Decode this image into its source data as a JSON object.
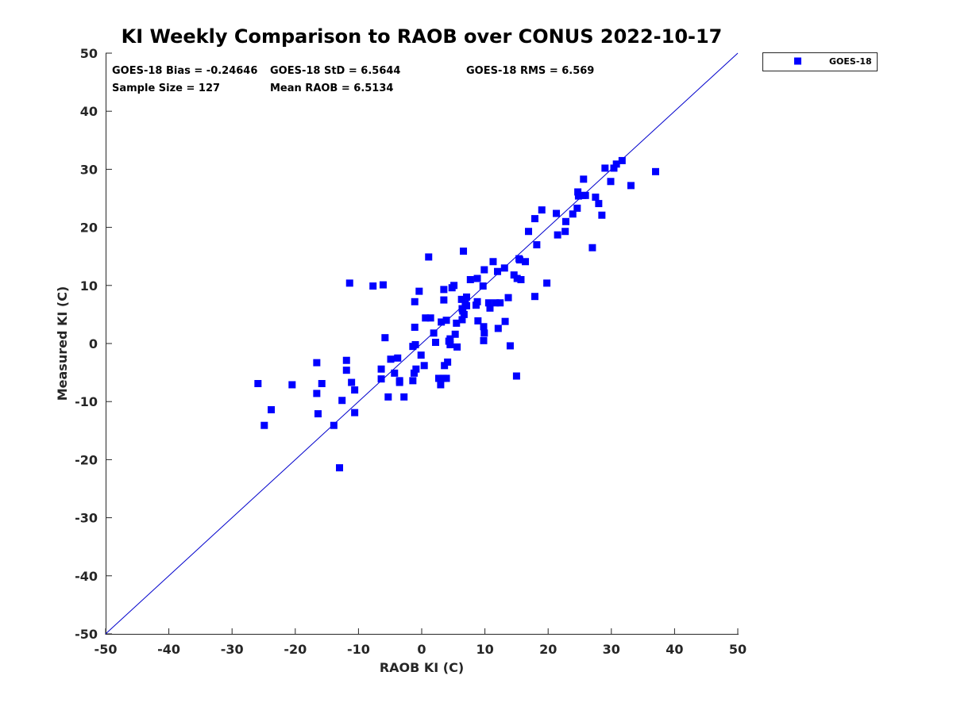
{
  "chart_data": {
    "type": "scatter",
    "title": "KI Weekly Comparison to RAOB over CONUS 2022-10-17",
    "xlabel": "RAOB KI (C)",
    "ylabel": "Measured KI (C)",
    "xlim": [
      -50,
      50
    ],
    "ylim": [
      -50,
      50
    ],
    "xticks": [
      "-50",
      "-40",
      "-30",
      "-20",
      "-10",
      "0",
      "10",
      "20",
      "30",
      "40",
      "50"
    ],
    "yticks": [
      "-50",
      "-40",
      "-30",
      "-20",
      "-10",
      "0",
      "10",
      "20",
      "30",
      "40",
      "50"
    ],
    "grid": false,
    "legend_position": "outside-top-right",
    "reference_line": {
      "from": [
        -50,
        -50
      ],
      "to": [
        50,
        50
      ],
      "color": "#0000cc"
    },
    "stats": {
      "bias": "GOES-18 Bias = -0.24646",
      "std": "GOES-18 StD = 6.5644",
      "rms": "GOES-18 RMS = 6.569",
      "sample_size": "Sample Size = 127",
      "mean_raob": "Mean RAOB = 6.5134"
    },
    "series": [
      {
        "name": "GOES-18",
        "color": "#0000ff",
        "marker": "square",
        "points": [
          [
            -25.9,
            -6.9
          ],
          [
            -24.9,
            -14.1
          ],
          [
            -23.8,
            -11.4
          ],
          [
            -20.5,
            -7.1
          ],
          [
            -16.6,
            -3.3
          ],
          [
            -16.6,
            -8.6
          ],
          [
            -16.4,
            -12.1
          ],
          [
            -15.8,
            -6.9
          ],
          [
            -13.9,
            -14.1
          ],
          [
            -13.0,
            -21.4
          ],
          [
            -12.6,
            -9.8
          ],
          [
            -11.9,
            -2.9
          ],
          [
            -11.9,
            -4.6
          ],
          [
            -11.4,
            10.4
          ],
          [
            -11.1,
            -6.7
          ],
          [
            -10.6,
            -8.0
          ],
          [
            -10.6,
            -11.9
          ],
          [
            -7.7,
            9.9
          ],
          [
            -6.4,
            -4.4
          ],
          [
            -6.4,
            -6.1
          ],
          [
            -6.1,
            10.1
          ],
          [
            -5.8,
            1.0
          ],
          [
            -5.3,
            -9.2
          ],
          [
            -4.9,
            -2.7
          ],
          [
            -4.3,
            -5.1
          ],
          [
            -3.8,
            -2.5
          ],
          [
            -3.5,
            -6.4
          ],
          [
            -3.5,
            -6.7
          ],
          [
            -2.8,
            -9.2
          ],
          [
            -1.4,
            -0.5
          ],
          [
            -1.4,
            -6.4
          ],
          [
            -1.2,
            -5.1
          ],
          [
            -1.1,
            7.2
          ],
          [
            -1.1,
            2.8
          ],
          [
            -1.0,
            -0.2
          ],
          [
            -0.9,
            -4.4
          ],
          [
            -0.4,
            9.0
          ],
          [
            -0.1,
            -2.0
          ],
          [
            0.4,
            -3.8
          ],
          [
            0.6,
            4.4
          ],
          [
            1.1,
            14.9
          ],
          [
            1.4,
            4.4
          ],
          [
            1.9,
            1.8
          ],
          [
            2.2,
            0.2
          ],
          [
            2.7,
            -6.0
          ],
          [
            3.0,
            -7.1
          ],
          [
            3.1,
            3.7
          ],
          [
            3.4,
            -6.0
          ],
          [
            3.5,
            9.3
          ],
          [
            3.5,
            7.5
          ],
          [
            3.6,
            -3.8
          ],
          [
            3.9,
            4.0
          ],
          [
            3.9,
            -6.0
          ],
          [
            4.1,
            -3.2
          ],
          [
            4.5,
            0.8
          ],
          [
            4.5,
            -0.2
          ],
          [
            4.8,
            9.6
          ],
          [
            5.1,
            10.0
          ],
          [
            5.3,
            1.6
          ],
          [
            5.5,
            3.5
          ],
          [
            5.6,
            -0.6
          ],
          [
            6.3,
            7.6
          ],
          [
            6.4,
            4.1
          ],
          [
            6.4,
            6.0
          ],
          [
            6.6,
            15.9
          ],
          [
            6.7,
            5.0
          ],
          [
            6.9,
            6.8
          ],
          [
            7.1,
            8.0
          ],
          [
            7.1,
            6.5
          ],
          [
            7.7,
            11.0
          ],
          [
            8.6,
            6.6
          ],
          [
            8.8,
            7.2
          ],
          [
            8.8,
            11.2
          ],
          [
            8.9,
            3.9
          ],
          [
            9.7,
            9.9
          ],
          [
            9.8,
            2.9
          ],
          [
            9.8,
            0.5
          ],
          [
            9.9,
            12.7
          ],
          [
            9.9,
            1.8
          ],
          [
            10.6,
            7.0
          ],
          [
            10.8,
            6.1
          ],
          [
            11.3,
            14.1
          ],
          [
            11.7,
            7.0
          ],
          [
            12.0,
            12.4
          ],
          [
            12.1,
            2.6
          ],
          [
            12.4,
            7.0
          ],
          [
            13.1,
            13.0
          ],
          [
            13.2,
            3.8
          ],
          [
            13.7,
            7.9
          ],
          [
            14.0,
            -0.4
          ],
          [
            14.6,
            11.8
          ],
          [
            15.0,
            -5.6
          ],
          [
            15.1,
            11.2
          ],
          [
            15.4,
            14.6
          ],
          [
            15.5,
            14.4
          ],
          [
            15.7,
            11.0
          ],
          [
            16.4,
            14.1
          ],
          [
            16.9,
            19.3
          ],
          [
            17.9,
            8.1
          ],
          [
            17.9,
            21.5
          ],
          [
            18.2,
            17.0
          ],
          [
            19.0,
            23.0
          ],
          [
            19.8,
            10.4
          ],
          [
            21.3,
            22.4
          ],
          [
            21.5,
            18.7
          ],
          [
            22.7,
            19.3
          ],
          [
            22.8,
            21.0
          ],
          [
            23.9,
            22.3
          ],
          [
            24.6,
            23.3
          ],
          [
            24.7,
            26.1
          ],
          [
            24.8,
            25.4
          ],
          [
            25.5,
            25.5
          ],
          [
            25.6,
            28.3
          ],
          [
            25.9,
            25.5
          ],
          [
            27.0,
            16.5
          ],
          [
            27.5,
            25.2
          ],
          [
            28.0,
            24.1
          ],
          [
            28.5,
            22.1
          ],
          [
            29.0,
            30.2
          ],
          [
            29.9,
            27.9
          ],
          [
            30.4,
            30.2
          ],
          [
            30.8,
            30.9
          ],
          [
            31.7,
            31.5
          ],
          [
            33.1,
            27.2
          ],
          [
            37.0,
            29.6
          ],
          [
            4.3,
            0.4
          ],
          [
            6.5,
            5.6
          ]
        ]
      }
    ]
  }
}
